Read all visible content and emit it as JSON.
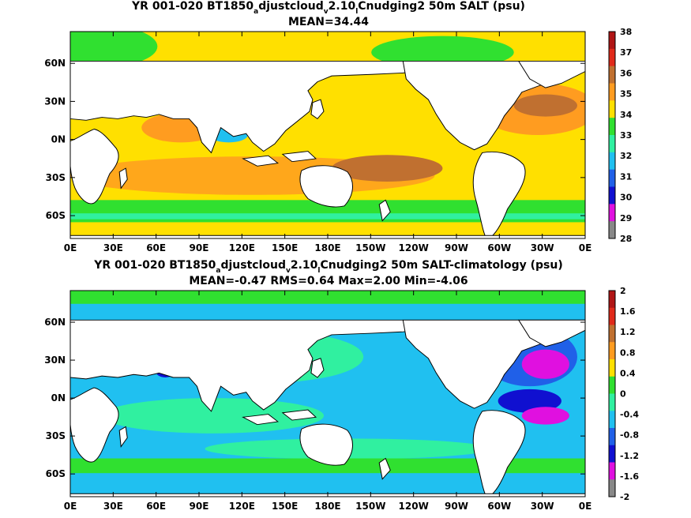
{
  "chart_data": [
    {
      "type": "heatmap",
      "title_parts": [
        "YR 001-020 BT1850",
        "a",
        "djustcloud",
        "v",
        "2.10",
        "l",
        "Cnudging2 50m SALT (psu)"
      ],
      "stats": "MEAN=34.44",
      "x_ticks": [
        "0E",
        "30E",
        "60E",
        "90E",
        "120E",
        "150E",
        "180E",
        "150W",
        "120W",
        "90W",
        "60W",
        "30W",
        "0E"
      ],
      "y_ticks": [
        "60N",
        "30N",
        "0N",
        "30S",
        "60S"
      ],
      "y_tick_lat": [
        60,
        30,
        0,
        -30,
        -60
      ],
      "xlim": [
        0,
        360
      ],
      "ylim": [
        -78,
        85
      ],
      "colorbar": {
        "labels": [
          "38",
          "37",
          "36",
          "35",
          "34",
          "33",
          "32",
          "31",
          "30",
          "29",
          "28"
        ],
        "colors": [
          "#b01515",
          "#e02a1a",
          "#c07030",
          "#ff9c20",
          "#ffe000",
          "#30e030",
          "#30f0a0",
          "#20c0f0",
          "#2060e8",
          "#1010d0",
          "#e010e0",
          "#888888"
        ]
      }
    },
    {
      "type": "heatmap",
      "title_parts": [
        "YR 001-020 BT1850",
        "a",
        "djustcloud",
        "v",
        "2.10",
        "l",
        "Cnudging2 50m SALT-climatology (psu)"
      ],
      "stats": "MEAN=-0.47   RMS=0.64   Max=2.00   Min=-4.06",
      "x_ticks": [
        "0E",
        "30E",
        "60E",
        "90E",
        "120E",
        "150E",
        "180E",
        "150W",
        "120W",
        "90W",
        "60W",
        "30W",
        "0E"
      ],
      "y_ticks": [
        "60N",
        "30N",
        "0N",
        "30S",
        "60S"
      ],
      "y_tick_lat": [
        60,
        30,
        0,
        -30,
        -60
      ],
      "xlim": [
        0,
        360
      ],
      "ylim": [
        -78,
        85
      ],
      "colorbar": {
        "labels": [
          "2",
          "1.6",
          "1.2",
          "0.8",
          "0.4",
          "0",
          "-0.4",
          "-0.8",
          "-1.2",
          "-1.6",
          "-2"
        ],
        "colors": [
          "#b01515",
          "#e02a1a",
          "#c07030",
          "#ff9c20",
          "#ffe000",
          "#30e030",
          "#30f0a0",
          "#20c0f0",
          "#2060e8",
          "#1010d0",
          "#e010e0",
          "#888888"
        ]
      }
    }
  ]
}
